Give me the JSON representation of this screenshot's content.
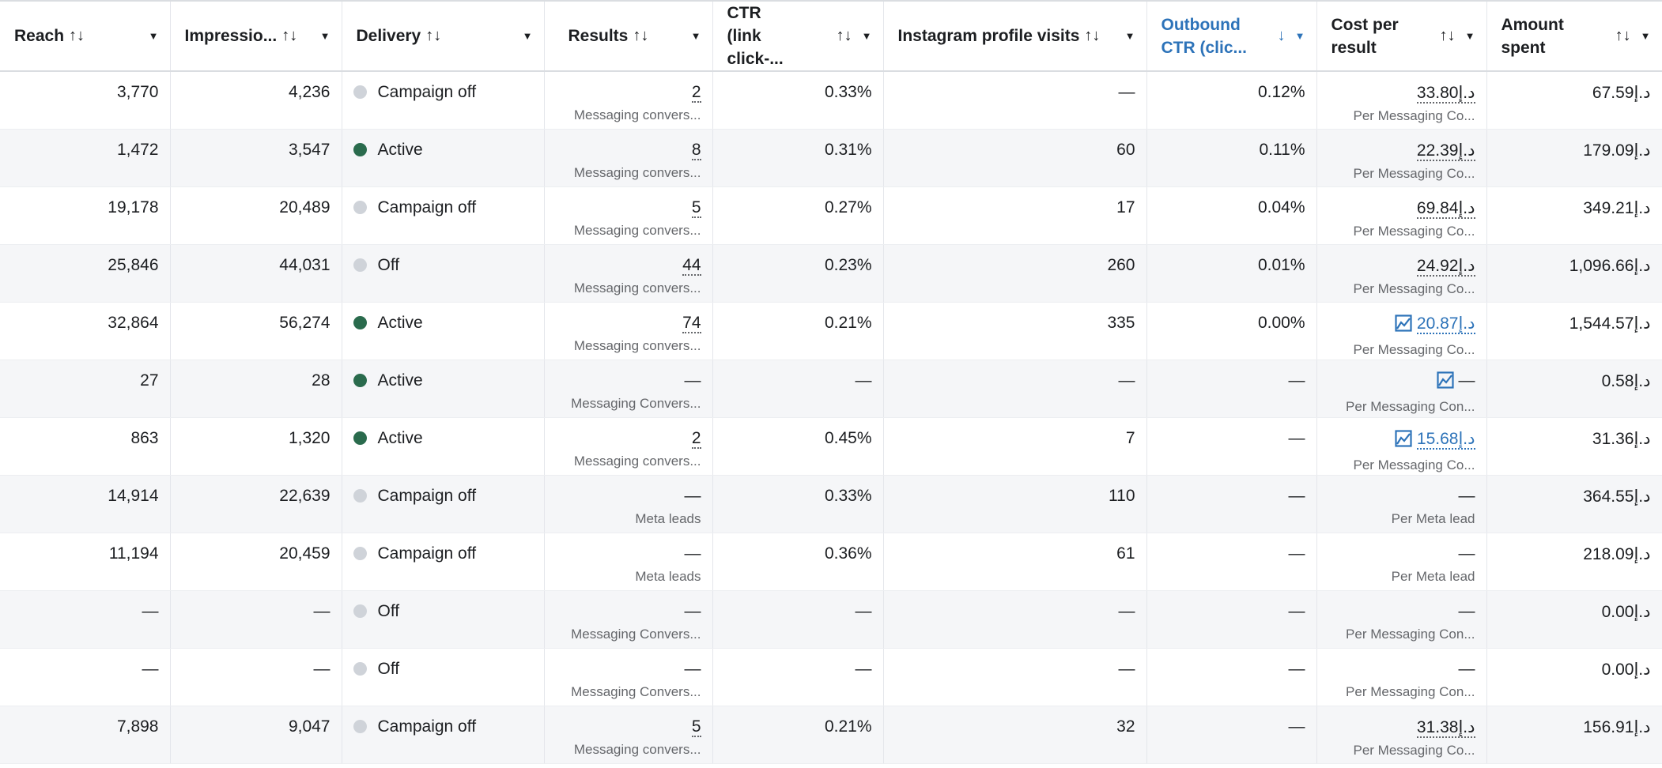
{
  "currency": "د.إ",
  "colors": {
    "accent": "#2d73b9",
    "active": "#2a6b4d",
    "off": "#cfd3d9"
  },
  "columns": [
    {
      "label": "Reach",
      "sort": "↑↓"
    },
    {
      "label": "Impressio...",
      "sort": "↑↓"
    },
    {
      "label": "Delivery",
      "sort": "↑↓"
    },
    {
      "label": "Results",
      "sort": "↑↓"
    },
    {
      "label": "CTR (link click-...",
      "sort": "↑↓"
    },
    {
      "label": "Instagram profile visits",
      "sort": "↑↓"
    },
    {
      "label": "Outbound CTR (clic...",
      "sort": "↓",
      "active": true
    },
    {
      "label": "Cost per result",
      "sort": "↑↓"
    },
    {
      "label": "Amount spent",
      "sort": "↑↓"
    }
  ],
  "rows": [
    {
      "reach": "3,770",
      "impressions": "4,236",
      "delivery": "Campaign off",
      "status": "off",
      "results": "2",
      "results_label": "Messaging convers...",
      "ctr": "0.33%",
      "ig_visits": "—",
      "outbound_ctr": "0.12%",
      "cost": "33.80",
      "cost_label": "Per Messaging Co...",
      "trend": false,
      "amount": "67.59"
    },
    {
      "reach": "1,472",
      "impressions": "3,547",
      "delivery": "Active",
      "status": "active",
      "results": "8",
      "results_label": "Messaging convers...",
      "ctr": "0.31%",
      "ig_visits": "60",
      "outbound_ctr": "0.11%",
      "cost": "22.39",
      "cost_label": "Per Messaging Co...",
      "trend": false,
      "amount": "179.09"
    },
    {
      "reach": "19,178",
      "impressions": "20,489",
      "delivery": "Campaign off",
      "status": "off",
      "results": "5",
      "results_label": "Messaging convers...",
      "ctr": "0.27%",
      "ig_visits": "17",
      "outbound_ctr": "0.04%",
      "cost": "69.84",
      "cost_label": "Per Messaging Co...",
      "trend": false,
      "amount": "349.21"
    },
    {
      "reach": "25,846",
      "impressions": "44,031",
      "delivery": "Off",
      "status": "off",
      "results": "44",
      "results_label": "Messaging convers...",
      "ctr": "0.23%",
      "ig_visits": "260",
      "outbound_ctr": "0.01%",
      "cost": "24.92",
      "cost_label": "Per Messaging Co...",
      "trend": false,
      "amount": "1,096.66"
    },
    {
      "reach": "32,864",
      "impressions": "56,274",
      "delivery": "Active",
      "status": "active",
      "results": "74",
      "results_label": "Messaging convers...",
      "ctr": "0.21%",
      "ig_visits": "335",
      "outbound_ctr": "0.00%",
      "cost": "20.87",
      "cost_label": "Per Messaging Co...",
      "trend": true,
      "amount": "1,544.57"
    },
    {
      "reach": "27",
      "impressions": "28",
      "delivery": "Active",
      "status": "active",
      "results": "—",
      "results_label": "Messaging Convers...",
      "ctr": "—",
      "ig_visits": "—",
      "outbound_ctr": "—",
      "cost": "—",
      "cost_label": "Per Messaging Con...",
      "trend": true,
      "amount": "0.58"
    },
    {
      "reach": "863",
      "impressions": "1,320",
      "delivery": "Active",
      "status": "active",
      "results": "2",
      "results_label": "Messaging convers...",
      "ctr": "0.45%",
      "ig_visits": "7",
      "outbound_ctr": "—",
      "cost": "15.68",
      "cost_label": "Per Messaging Co...",
      "trend": true,
      "amount": "31.36"
    },
    {
      "reach": "14,914",
      "impressions": "22,639",
      "delivery": "Campaign off",
      "status": "off",
      "results": "—",
      "results_label": "Meta leads",
      "ctr": "0.33%",
      "ig_visits": "110",
      "outbound_ctr": "—",
      "cost": "—",
      "cost_label": "Per Meta lead",
      "trend": false,
      "amount": "364.55"
    },
    {
      "reach": "11,194",
      "impressions": "20,459",
      "delivery": "Campaign off",
      "status": "off",
      "results": "—",
      "results_label": "Meta leads",
      "ctr": "0.36%",
      "ig_visits": "61",
      "outbound_ctr": "—",
      "cost": "—",
      "cost_label": "Per Meta lead",
      "trend": false,
      "amount": "218.09"
    },
    {
      "reach": "—",
      "impressions": "—",
      "delivery": "Off",
      "status": "off",
      "results": "—",
      "results_label": "Messaging Convers...",
      "ctr": "—",
      "ig_visits": "—",
      "outbound_ctr": "—",
      "cost": "—",
      "cost_label": "Per Messaging Con...",
      "trend": false,
      "amount": "0.00"
    },
    {
      "reach": "—",
      "impressions": "—",
      "delivery": "Off",
      "status": "off",
      "results": "—",
      "results_label": "Messaging Convers...",
      "ctr": "—",
      "ig_visits": "—",
      "outbound_ctr": "—",
      "cost": "—",
      "cost_label": "Per Messaging Con...",
      "trend": false,
      "amount": "0.00"
    },
    {
      "reach": "7,898",
      "impressions": "9,047",
      "delivery": "Campaign off",
      "status": "off",
      "results": "5",
      "results_label": "Messaging convers...",
      "ctr": "0.21%",
      "ig_visits": "32",
      "outbound_ctr": "—",
      "cost": "31.38",
      "cost_label": "Per Messaging Co...",
      "trend": false,
      "amount": "156.91"
    }
  ]
}
